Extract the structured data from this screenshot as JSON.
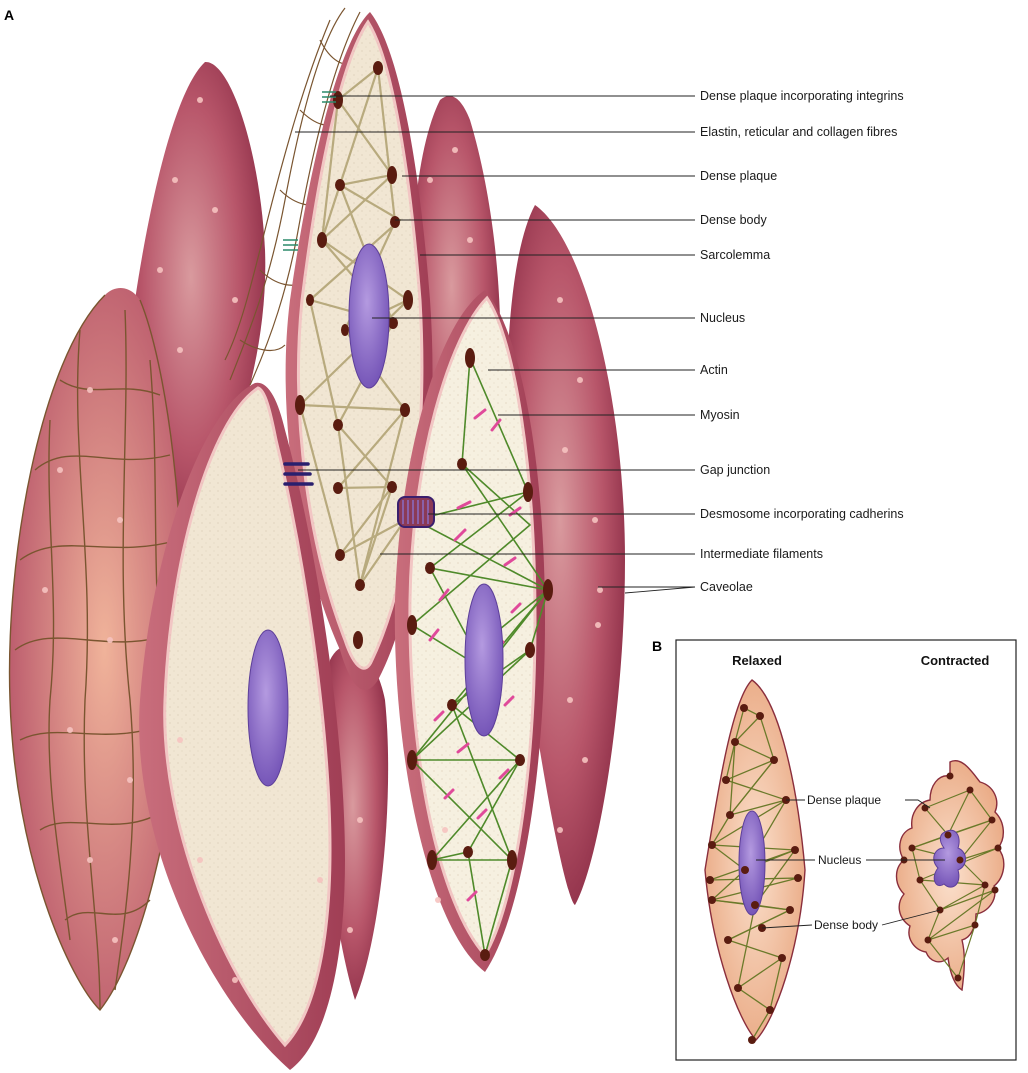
{
  "panel_a": {
    "letter": "A",
    "labels": {
      "dense_plaque_integrins": "Dense plaque incorporating integrins",
      "elastin_fibres": "Elastin, reticular and collagen fibres",
      "dense_plaque": "Dense plaque",
      "dense_body": "Dense body",
      "sarcolemma": "Sarcolemma",
      "nucleus": "Nucleus",
      "actin": "Actin",
      "myosin": "Myosin",
      "gap_junction": "Gap junction",
      "desmosome": "Desmosome incorporating cadherins",
      "intermediate_filaments": "Intermediate filaments",
      "caveolae": "Caveolae"
    }
  },
  "panel_b": {
    "letter": "B",
    "relaxed_heading": "Relaxed",
    "contracted_heading": "Contracted",
    "labels": {
      "dense_plaque": "Dense plaque",
      "nucleus": "Nucleus",
      "dense_body": "Dense body"
    }
  },
  "colors": {
    "cell_surface": "#b8566a",
    "cell_cut_face": "#f1e6d3",
    "sarcolemma_rim": "#f2c6c4",
    "nucleus": "#8a6cc4",
    "dense_body": "#5a1c10",
    "actin": "#4f8a2a",
    "myosin": "#e04a9a",
    "intermediate_filaments": "#b5a77a",
    "fibre_mesh": "#7a5530",
    "relaxed_cell": "#f0b994"
  }
}
